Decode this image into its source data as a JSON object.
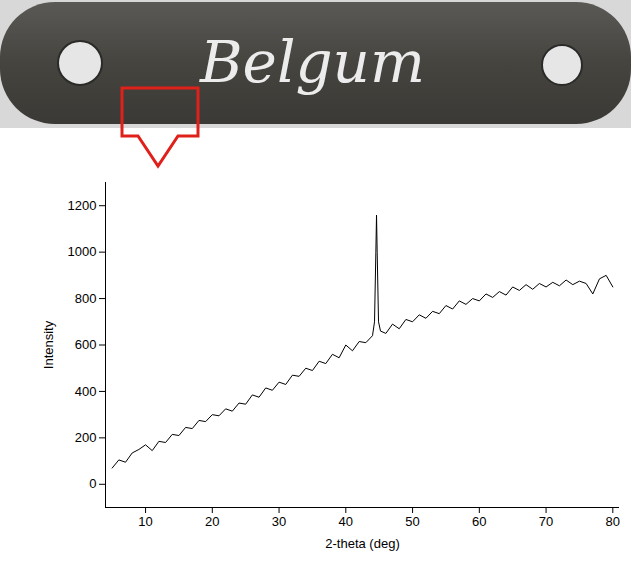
{
  "specimen_label": "Belgum",
  "chart_data": {
    "type": "line",
    "x_label": "2-theta (deg)",
    "y_label": "Intensity",
    "x": [
      5,
      6,
      7,
      8,
      9,
      10,
      11,
      12,
      13,
      14,
      15,
      16,
      17,
      18,
      19,
      20,
      21,
      22,
      23,
      24,
      25,
      26,
      27,
      28,
      29,
      30,
      31,
      32,
      33,
      34,
      35,
      36,
      37,
      38,
      39,
      40,
      41,
      42,
      43,
      44,
      44.3,
      44.5,
      44.6,
      44.7,
      44.9,
      45.2,
      46,
      47,
      48,
      49,
      50,
      51,
      52,
      53,
      54,
      55,
      56,
      57,
      58,
      59,
      60,
      61,
      62,
      63,
      64,
      65,
      66,
      67,
      68,
      69,
      70,
      71,
      72,
      73,
      74,
      75,
      76,
      77,
      78,
      79,
      80
    ],
    "values": [
      70,
      105,
      95,
      135,
      150,
      170,
      145,
      185,
      180,
      215,
      210,
      245,
      240,
      275,
      270,
      300,
      295,
      325,
      315,
      350,
      345,
      385,
      375,
      415,
      405,
      440,
      430,
      470,
      465,
      500,
      490,
      530,
      520,
      560,
      545,
      600,
      575,
      615,
      610,
      640,
      700,
      1000,
      1160,
      1000,
      700,
      660,
      650,
      690,
      670,
      710,
      700,
      730,
      715,
      745,
      735,
      770,
      755,
      790,
      775,
      800,
      790,
      820,
      805,
      830,
      815,
      850,
      835,
      860,
      840,
      865,
      850,
      870,
      855,
      880,
      860,
      875,
      865,
      820,
      885,
      900,
      850
    ],
    "color": "#000000",
    "xlim": [
      4,
      81
    ],
    "xticks": [
      10,
      20,
      30,
      40,
      50,
      60,
      70,
      80
    ],
    "ylim": [
      -100,
      1300
    ],
    "yticks": [
      0,
      200,
      400,
      600,
      800,
      1000,
      1200
    ],
    "grid": false
  }
}
